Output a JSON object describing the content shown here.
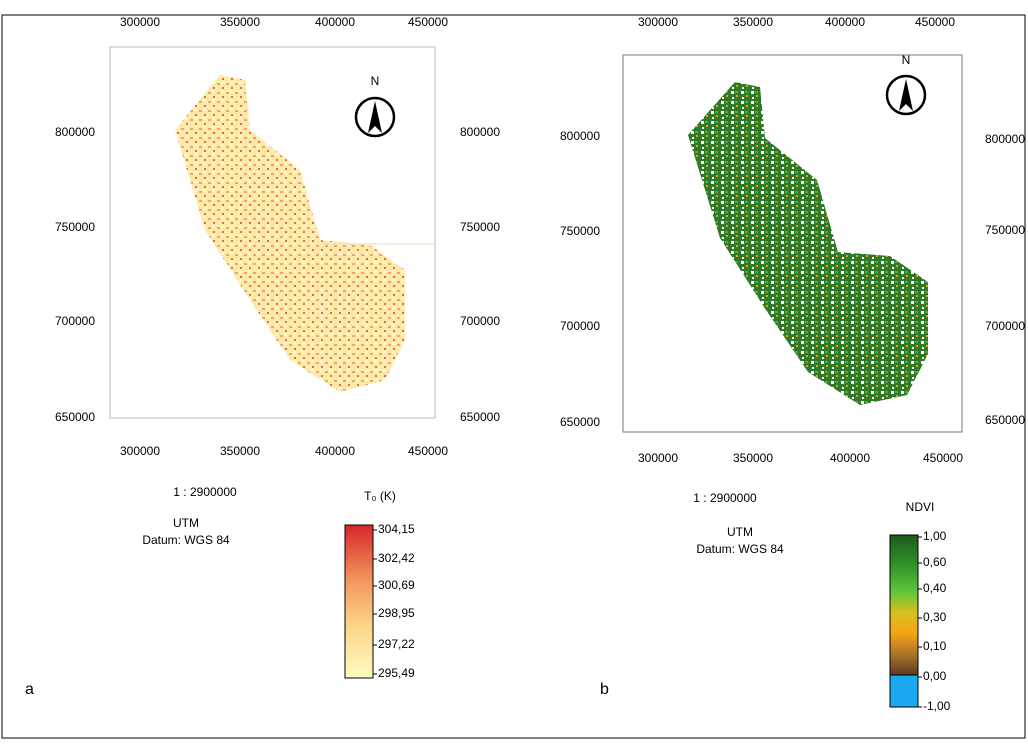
{
  "panels": [
    {
      "letter": "a",
      "x_ticks_top": [
        "300000",
        "350000",
        "400000",
        "450000"
      ],
      "x_ticks_bottom": [
        "300000",
        "350000",
        "400000",
        "450000"
      ],
      "y_ticks_left": [
        "800000",
        "750000",
        "700000",
        "650000"
      ],
      "y_ticks_right": [
        "800000",
        "750000",
        "700000",
        "650000"
      ],
      "north": "N",
      "scale": "1 : 2900000",
      "projection": "UTM",
      "datum": "Datum: WGS 84",
      "legend_title": "T₀  (K)",
      "legend_labels": [
        "304,15",
        "302,42",
        "300,69",
        "298,95",
        "297,22",
        "295,49"
      ]
    },
    {
      "letter": "b",
      "x_ticks_top": [
        "300000",
        "350000",
        "400000",
        "450000"
      ],
      "x_ticks_bottom": [
        "300000",
        "350000",
        "400000",
        "450000"
      ],
      "y_ticks_left": [
        "800000",
        "750000",
        "700000",
        "650000"
      ],
      "y_ticks_right": [
        "800000",
        "750000",
        "700000",
        "650000"
      ],
      "north": "N",
      "scale": "1 : 2900000",
      "projection": "UTM",
      "datum": "Datum: WGS 84",
      "legend_title": "NDVI",
      "legend_labels": [
        "1,00",
        "0,60",
        "0,40",
        "0,30",
        "0,10",
        "0,00",
        "-1,00"
      ]
    }
  ]
}
